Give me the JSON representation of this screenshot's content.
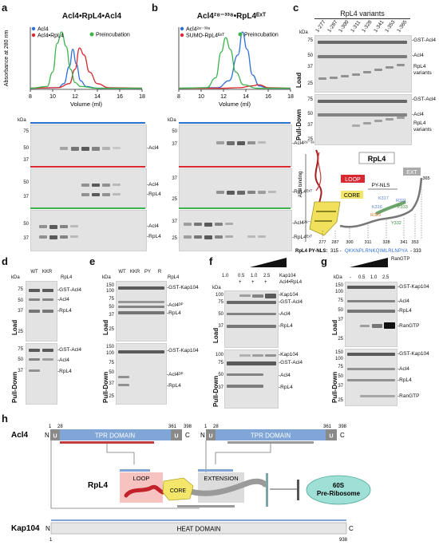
{
  "panel_labels": [
    "a",
    "b",
    "c",
    "d",
    "e",
    "f",
    "g",
    "h"
  ],
  "panel_a": {
    "title": "Acl4•RpL4•Acl4",
    "legend": [
      "Acl4",
      "Acl4•RpL4",
      "Preincubation"
    ],
    "ylabel": "Absorbance at 280 nm",
    "xlabel": "Volume (ml)",
    "gel_unit": "kDa",
    "gel1_markers": [
      "75",
      "50",
      "37"
    ],
    "gel1_labels": [
      "-Acl4"
    ],
    "gel2_markers": [
      "50",
      "37"
    ],
    "gel2_labels": [
      "-Acl4",
      "-RpL4"
    ],
    "gel3_markers": [
      "50",
      "37"
    ],
    "gel3_labels": [
      "-Acl4",
      "-RpL4"
    ]
  },
  "panel_b": {
    "title": "Acl4²⁸⁻³³⁸•RpL4ᴱˣᵀ",
    "legend": [
      "Acl4²⁸⁻³³⁸",
      "SUMO-RpL4ᴱˣᵀ",
      "Preincubation"
    ],
    "xlabel": "Volume (ml)",
    "gel_unit": "kDa",
    "gel1_markers": [
      "50",
      "37"
    ],
    "gel1_labels": [
      "-Acl4²⁸⁻³³⁸"
    ],
    "gel2_markers": [
      "37",
      "25"
    ],
    "gel2_labels": [
      "-RpL4ᴱˣᵀ"
    ],
    "gel3_markers": [
      "37",
      "25"
    ],
    "gel3_labels": [
      "-Acl4²⁸⁻³³⁸",
      "-RpL4ᴱˣᵀ"
    ]
  },
  "panel_c": {
    "title": "RpL4 variants",
    "lanes": [
      "1-277",
      "1-287",
      "1-300",
      "1-311",
      "1-328",
      "1-341",
      "1-353",
      "1-365"
    ],
    "gel_unit": "kDa",
    "load_label": "Load",
    "pd_label": "Pull-Down",
    "load_markers": [
      "75",
      "50",
      "37",
      "25"
    ],
    "load_labels": [
      "-GST-Acl4",
      "-Acl4",
      "RpL4",
      "variants"
    ],
    "pd_markers": [
      "75",
      "50",
      "37",
      "25"
    ],
    "pd_labels": [
      "-GST-Acl4",
      "-Acl4",
      "RpL4",
      "variants"
    ],
    "struct_title": "RpL4",
    "tags": [
      "LOOP",
      "CORE",
      "EXT",
      "PY-NLS",
      "Acl4 binding"
    ],
    "residues": [
      "K316",
      "R321",
      "K317",
      "P333",
      "R329",
      "Y332"
    ],
    "positions": [
      "277",
      "287",
      "300",
      "311",
      "328",
      "341",
      "353",
      "365"
    ],
    "nls_label": "RpL4 PY-NLS:",
    "nls_start": "315 -",
    "nls_seq": "QKKNPLRNKQIMLRLNPYA",
    "nls_end": "- 333"
  },
  "panel_d": {
    "lanes": [
      "WT",
      "KKR"
    ],
    "protein": "RpL4",
    "gel_unit": "kDa",
    "load_label": "Load",
    "pd_label": "Pull-Down",
    "load_markers": [
      "75",
      "50",
      "37",
      "25"
    ],
    "load_labels": [
      "-GST-Acl4",
      "-Acl4",
      "-RpL4"
    ],
    "pd_markers": [
      "75",
      "50",
      "37"
    ],
    "pd_labels": [
      "-GST-Acl4",
      "-Acl4",
      "-RpL4"
    ]
  },
  "panel_e": {
    "lanes": [
      "WT",
      "KKR",
      "PY",
      "R"
    ],
    "protein": "RpL4",
    "gel_unit": "kDa",
    "load_label": "Load",
    "pd_label": "Pull-Down",
    "load_markers": [
      "150",
      "100",
      "75",
      "50",
      "37",
      "25"
    ],
    "load_labels": [
      "-GST-Kap104",
      "-Acl4ᴰᴾ",
      "-RpL4"
    ],
    "pd_markers": [
      "150",
      "100",
      "75",
      "50",
      "37",
      "25"
    ],
    "pd_labels": [
      "-GST-Kap104",
      "-Acl4ᴰᴾ",
      "-RpL4"
    ]
  },
  "panel_f": {
    "conc": [
      "1.0",
      "0.5",
      "1.0",
      "2.5"
    ],
    "signs": [
      "+",
      "+",
      "+",
      "+"
    ],
    "rows": [
      "Kap104",
      "Acl4•RpL4"
    ],
    "gel_unit": "kDa",
    "load_label": "Load",
    "pd_label": "Pull-Down",
    "load_markers": [
      "100",
      "75",
      "50",
      "37"
    ],
    "load_labels": [
      "-Kap104",
      "-GST-Acl4",
      "-Acl4",
      "-RpL4"
    ],
    "pd_markers": [
      "100",
      "75",
      "50",
      "37"
    ],
    "pd_labels": [
      "-Kap104",
      "-GST-Acl4",
      "-Acl4",
      "-RpL4"
    ]
  },
  "panel_g": {
    "conc": [
      "-",
      "0.5",
      "1.0",
      "2.5"
    ],
    "protein": "RanGTP",
    "gel_unit": "kDa",
    "load_label": "Load",
    "pd_label": "Pull-Down",
    "load_markers": [
      "150",
      "100",
      "75",
      "50",
      "37",
      "25"
    ],
    "load_labels": [
      "-GST-Kap104",
      "-Acl4",
      "-RpL4",
      "-RanGTP"
    ],
    "pd_markers": [
      "150",
      "100",
      "75",
      "50",
      "37",
      "25"
    ],
    "pd_labels": [
      "-GST-Kap104",
      "-Acl4",
      "-RpL4",
      "-RanGTP"
    ]
  },
  "panel_h": {
    "acl4_name": "Acl4",
    "rpl4_name": "RpL4",
    "kap_name": "Kap104",
    "acl4_nums": [
      "1",
      "28",
      "361",
      "398"
    ],
    "kap_nums": [
      "1",
      "938"
    ],
    "u": "U",
    "n": "N",
    "c": "C",
    "tpr": "TPR DOMAIN",
    "heat": "HEAT DOMAIN",
    "loop": "LOOP",
    "core": "CORE",
    "extension": "EXTENSION",
    "ribosome": "60S\nPre-Ribosome"
  },
  "chart_data": [
    {
      "type": "line",
      "xlabel": "Volume (ml)",
      "ylabel": "Absorbance at 280 nm",
      "xlim": [
        8,
        18
      ],
      "xticks": [
        8,
        10,
        12,
        14,
        16,
        18
      ],
      "grid": false,
      "legend": "top-left",
      "series": [
        {
          "name": "Acl4",
          "color": "#2e6fd6",
          "x": [
            8,
            10.5,
            11,
            11.5,
            11.8,
            12.1,
            12.5,
            13,
            14,
            18
          ],
          "y": [
            0.02,
            0.03,
            0.1,
            0.4,
            0.7,
            0.45,
            0.15,
            0.05,
            0.02,
            0.02
          ]
        },
        {
          "name": "Acl4•RpL4",
          "color": "#d9282f",
          "x": [
            8,
            10.5,
            11.5,
            12,
            12.4,
            12.8,
            13.3,
            14,
            15,
            18
          ],
          "y": [
            0.02,
            0.03,
            0.1,
            0.35,
            0.72,
            0.6,
            0.3,
            0.1,
            0.03,
            0.02
          ]
        },
        {
          "name": "Preincubation",
          "color": "#3cb44b",
          "x": [
            8,
            9.5,
            10,
            10.4,
            10.8,
            11.2,
            11.6,
            12,
            12.5,
            14,
            18
          ],
          "y": [
            0.02,
            0.05,
            0.3,
            0.8,
            1.0,
            0.75,
            0.35,
            0.12,
            0.05,
            0.02,
            0.02
          ]
        }
      ]
    },
    {
      "type": "line",
      "xlabel": "Volume (ml)",
      "xlim": [
        8,
        18
      ],
      "xticks": [
        8,
        10,
        12,
        14,
        16,
        18
      ],
      "grid": false,
      "legend": "top-left",
      "series": [
        {
          "name": "Acl4²⁸⁻³³⁸",
          "color": "#2e6fd6",
          "x": [
            8,
            11.5,
            12.5,
            13.3,
            13.7,
            14.1,
            14.6,
            15.2,
            16,
            18
          ],
          "y": [
            0.02,
            0.03,
            0.15,
            0.6,
            1.0,
            0.7,
            0.25,
            0.06,
            0.02,
            0.02
          ]
        },
        {
          "name": "SUMO-RpL4ᴱˣᵀ",
          "color": "#d9282f",
          "x": [
            8,
            12,
            13.5,
            14.5,
            15.2,
            16,
            18
          ],
          "y": [
            0.02,
            0.02,
            0.03,
            0.06,
            0.08,
            0.03,
            0.02
          ]
        },
        {
          "name": "Preincubation",
          "color": "#3cb44b",
          "x": [
            8,
            10.5,
            11.3,
            11.8,
            12.2,
            12.6,
            13.1,
            13.8,
            15,
            18
          ],
          "y": [
            0.02,
            0.03,
            0.2,
            0.65,
            0.9,
            0.7,
            0.3,
            0.08,
            0.02,
            0.02
          ]
        }
      ]
    }
  ]
}
